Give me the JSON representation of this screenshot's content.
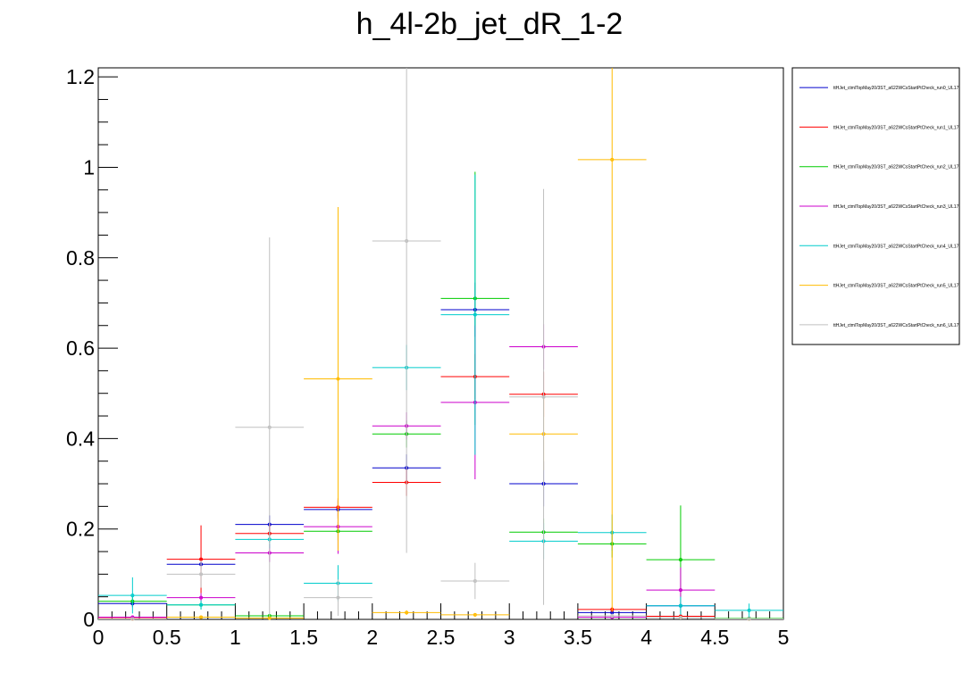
{
  "chart_data": {
    "type": "histogram-errorbars",
    "title": "h_4l-2b_jet_dR_1-2",
    "xlabel": "",
    "ylabel": "",
    "xlim": [
      0,
      5
    ],
    "ylim": [
      0,
      1.22
    ],
    "bin_edges": [
      0,
      0.5,
      1,
      1.5,
      2,
      2.5,
      3,
      3.5,
      4,
      4.5,
      5
    ],
    "x_ticks": [
      "0",
      "0.5",
      "1",
      "1.5",
      "2",
      "2.5",
      "3",
      "3.5",
      "4",
      "4.5",
      "5"
    ],
    "y_ticks": [
      {
        "value": 0,
        "label": "0"
      },
      {
        "value": 0.2,
        "label": "0.2"
      },
      {
        "value": 0.4,
        "label": "0.4"
      },
      {
        "value": 0.6,
        "label": "0.6"
      },
      {
        "value": 0.8,
        "label": "0.8"
      },
      {
        "value": 1.0,
        "label": "1"
      },
      {
        "value": 1.2,
        "label": "1.2"
      }
    ],
    "legend_position": "right",
    "series": [
      {
        "name": "ttHJet_ctmlTopMay20/3ST_a622WCsStartPtCheck_run0_UL17",
        "color": "#0000cc",
        "values": [
          0.035,
          0.122,
          0.21,
          0.243,
          0.335,
          0.685,
          0.3,
          0.015,
          0.03,
          0.002
        ],
        "errors": [
          0.008,
          0.012,
          0.02,
          0.02,
          0.03,
          0.06,
          0.05,
          0.005,
          0.008,
          0.002
        ]
      },
      {
        "name": "ttHJet_ctmlTopMay20/3ST_a622WCsStartPtCheck_run1_UL17",
        "color": "#ff0000",
        "values": [
          0.002,
          0.133,
          0.19,
          0.248,
          0.303,
          0.537,
          0.498,
          0.022,
          0.007,
          0.001
        ],
        "errors": [
          0.002,
          0.075,
          0.02,
          0.02,
          0.03,
          0.05,
          0.05,
          0.006,
          0.003,
          0.001
        ]
      },
      {
        "name": "ttHJet_ctmlTopMay20/3ST_a622WCsStartPtCheck_run2_UL17",
        "color": "#00cc00",
        "values": [
          0.04,
          0.032,
          0.008,
          0.195,
          0.41,
          0.71,
          0.193,
          0.167,
          0.132,
          0.002
        ],
        "errors": [
          0.01,
          0.01,
          0.004,
          0.02,
          0.03,
          0.28,
          0.03,
          0.03,
          0.12,
          0.002
        ]
      },
      {
        "name": "ttHJet_ctmlTopMay20/3ST_a622WCsStartPtCheck_run3_UL17",
        "color": "#cc00cc",
        "values": [
          0.005,
          0.048,
          0.147,
          0.205,
          0.428,
          0.48,
          0.603,
          0.005,
          0.065,
          0.001
        ],
        "errors": [
          0.003,
          0.01,
          0.02,
          0.06,
          0.03,
          0.17,
          0.05,
          0.003,
          0.05,
          0.001
        ]
      },
      {
        "name": "ttHJet_ctmlTopMay20/3ST_a622WCsStartPtCheck_run4_UL17",
        "color": "#00cccc",
        "values": [
          0.053,
          0.032,
          0.177,
          0.08,
          0.557,
          0.674,
          0.173,
          0.192,
          0.03,
          0.02
        ],
        "errors": [
          0.04,
          0.01,
          0.02,
          0.04,
          0.05,
          0.31,
          0.04,
          0.04,
          0.02,
          0.015
        ]
      },
      {
        "name": "ttHJet_ctmlTopMay20/3ST_a622WCsStartPtCheck_run5_UL17",
        "color": "#ffbb00",
        "values": [
          0.001,
          0.005,
          0.003,
          0.532,
          0.015,
          0.01,
          0.41,
          1.017,
          0.004,
          0.001
        ],
        "errors": [
          0.001,
          0.003,
          0.002,
          0.38,
          0.005,
          0.004,
          0.08,
          1.0,
          0.003,
          0.001
        ]
      },
      {
        "name": "ttHJet_ctmlTopMay20/3ST_a622WCsStartPtCheck_run6_UL17",
        "color": "#c0c0c0",
        "values": [
          0.001,
          0.1,
          0.425,
          0.048,
          0.837,
          0.085,
          0.492,
          0.008,
          0.004,
          0.001
        ],
        "errors": [
          0.001,
          0.03,
          0.42,
          0.04,
          0.69,
          0.04,
          0.46,
          0.005,
          0.003,
          0.001
        ]
      }
    ]
  }
}
